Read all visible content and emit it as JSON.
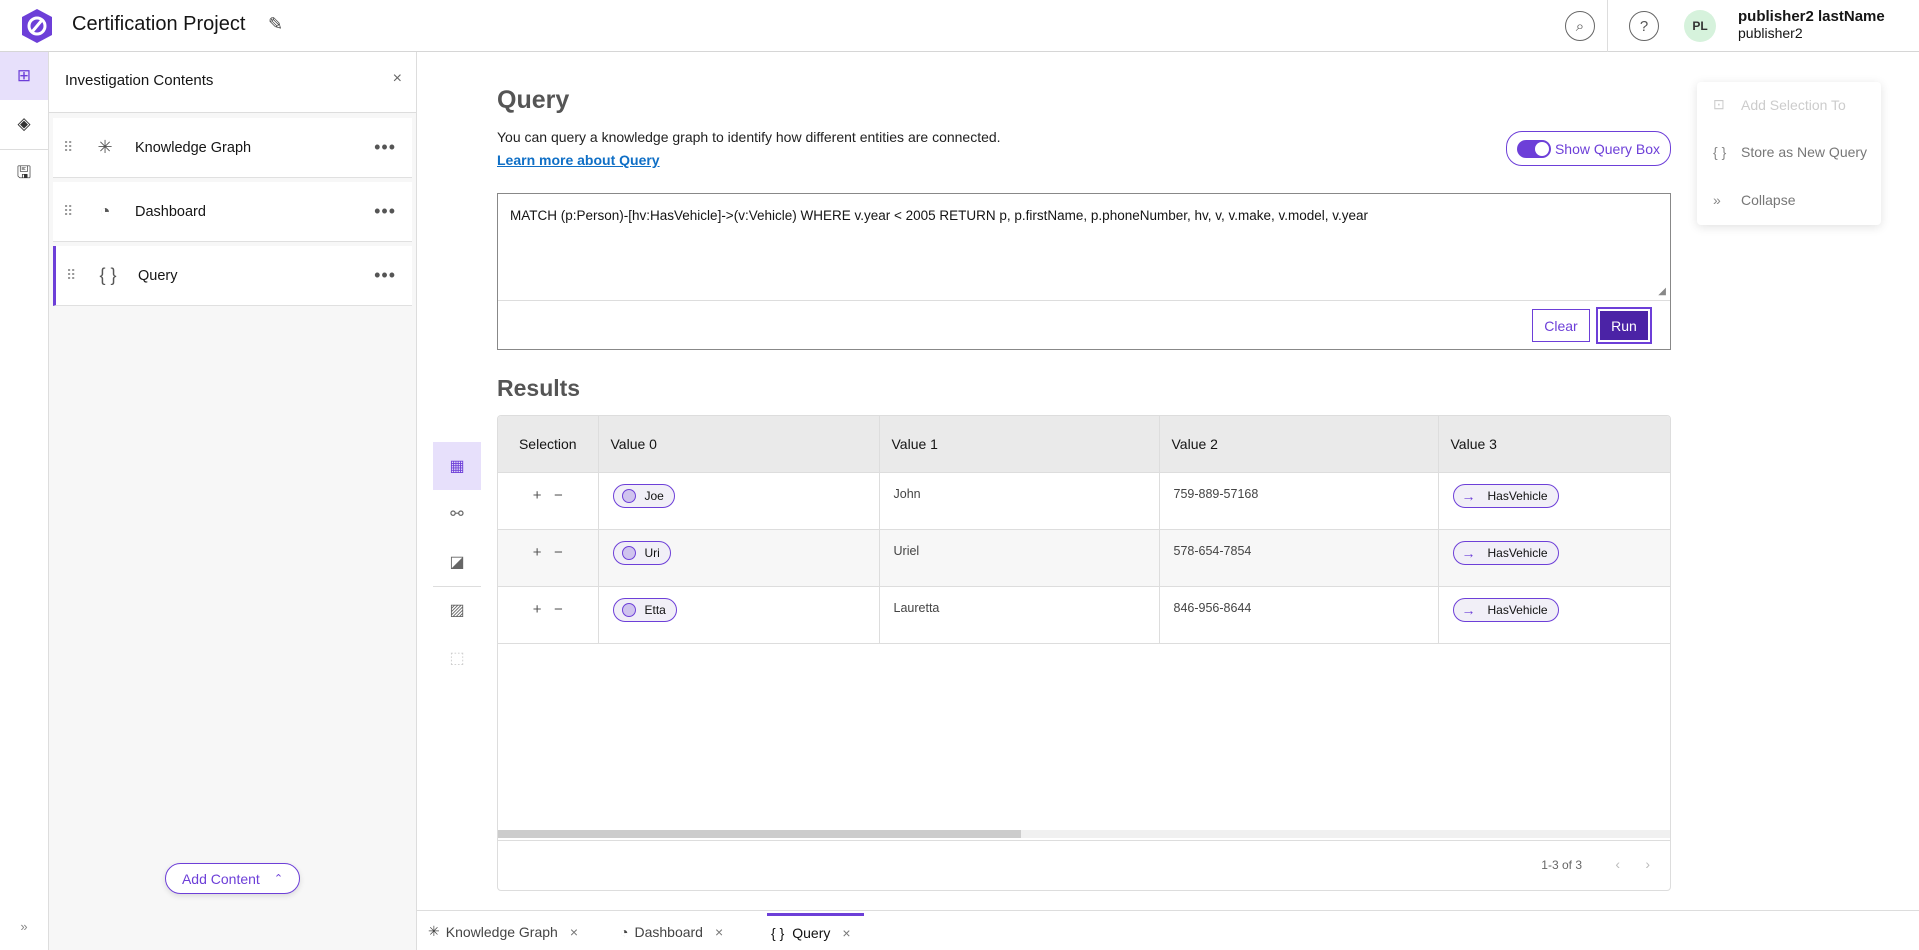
{
  "header": {
    "project_title": "Certification Project",
    "user_initials": "PL",
    "user_name": "publisher2 lastName",
    "user_id": "publisher2",
    "search_icon": "search-icon",
    "help_icon": "help-icon"
  },
  "rail": {
    "items": [
      "contents-icon",
      "layers-icon",
      "save-icon"
    ],
    "expand": "»"
  },
  "panel": {
    "title": "Investigation Contents",
    "items": [
      {
        "label": "Knowledge Graph",
        "icon": "knowledge-graph-icon"
      },
      {
        "label": "Dashboard",
        "icon": "dashboard-icon"
      },
      {
        "label": "Query",
        "icon": "braces-icon"
      }
    ],
    "add_content": "Add Content"
  },
  "main": {
    "title": "Query",
    "description": "You can query a knowledge graph to identify how different entities are connected.",
    "learn_more": "Learn more about Query",
    "toggle_label": "Show Query Box",
    "toggle_on": true,
    "query": "MATCH (p:Person)-[hv:HasVehicle]->(v:Vehicle) WHERE v.year < 2005 RETURN p, p.firstName, p.phoneNumber, hv, v, v.make, v.model, v.year",
    "clear": "Clear",
    "run": "Run",
    "results_title": "Results"
  },
  "table": {
    "columns": [
      "Selection",
      "Value 0",
      "Value 1",
      "Value 2",
      "Value 3"
    ],
    "rows": [
      {
        "v0": "Joe",
        "v1": "John",
        "v2": "759-889-57168",
        "v3": "HasVehicle"
      },
      {
        "v0": "Uri",
        "v1": "Uriel",
        "v2": "578-654-7854",
        "v3": "HasVehicle"
      },
      {
        "v0": "Etta",
        "v1": "Lauretta",
        "v2": "846-956-8644",
        "v3": "HasVehicle"
      }
    ],
    "pagination": "1-3 of 3",
    "add": "+",
    "remove": "−"
  },
  "menu": {
    "items": [
      {
        "label": "Add Selection To",
        "disabled": true
      },
      {
        "label": "Store as New Query"
      },
      {
        "label": "Collapse"
      }
    ]
  },
  "bottom_tabs": [
    {
      "label": "Knowledge Graph"
    },
    {
      "label": "Dashboard"
    },
    {
      "label": "Query",
      "active": true
    }
  ],
  "colors": {
    "accent": "#6d3fd8",
    "run": "#4b23a6"
  }
}
